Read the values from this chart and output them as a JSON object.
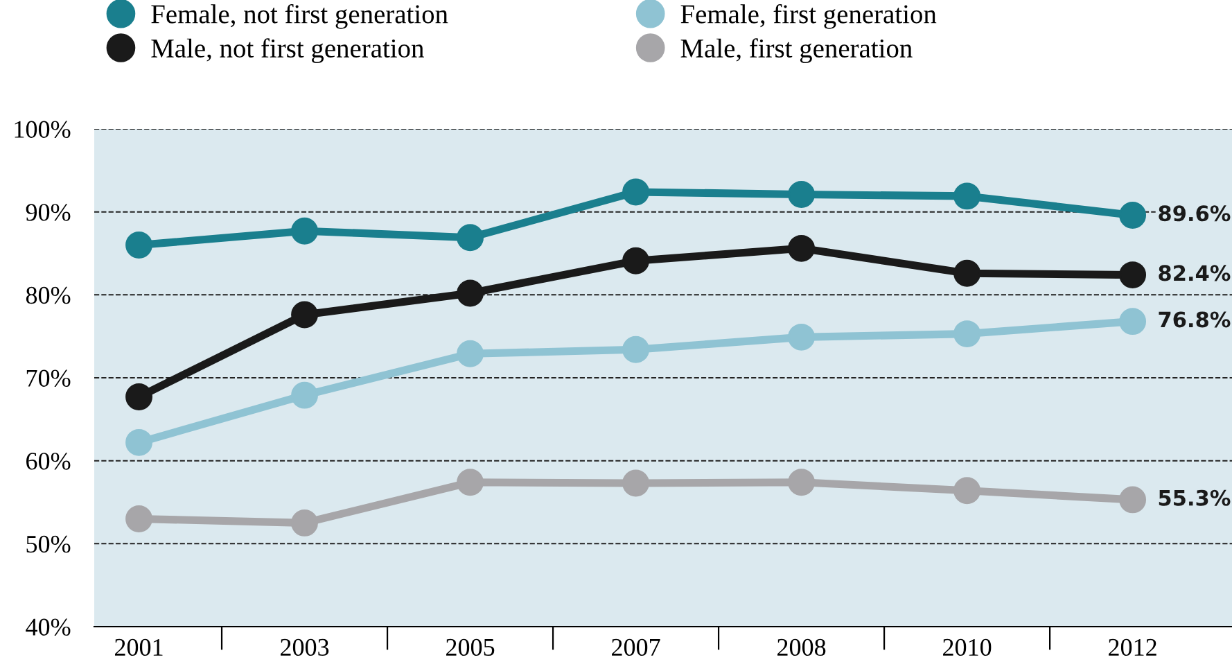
{
  "chart_data": {
    "type": "line",
    "categories": [
      "2001",
      "2003",
      "2005",
      "2007",
      "2008",
      "2010",
      "2012"
    ],
    "series": [
      {
        "name": "Female, not first generation",
        "color": "#1a7f8e",
        "values": [
          86.0,
          87.7,
          86.9,
          92.4,
          92.1,
          91.9,
          89.6
        ],
        "value_labels": [
          null,
          null,
          null,
          null,
          null,
          null,
          "89.6%"
        ]
      },
      {
        "name": "Male, not first generation",
        "color": "#1a1a1a",
        "values": [
          67.7,
          77.6,
          80.2,
          84.1,
          85.6,
          82.6,
          82.4
        ],
        "value_labels": [
          null,
          null,
          null,
          null,
          null,
          null,
          "82.4%"
        ]
      },
      {
        "name": "Female, first generation",
        "color": "#8fc3d3",
        "values": [
          62.2,
          67.9,
          72.9,
          73.4,
          74.9,
          75.3,
          76.8
        ],
        "value_labels": [
          null,
          null,
          null,
          null,
          null,
          null,
          "76.8%"
        ]
      },
      {
        "name": "Male, first generation",
        "color": "#a7a6a9",
        "values": [
          53.0,
          52.5,
          57.4,
          57.3,
          57.4,
          56.4,
          55.3
        ],
        "value_labels": [
          null,
          null,
          null,
          null,
          null,
          null,
          "55.3%"
        ]
      }
    ],
    "ylim": [
      40,
      100
    ],
    "yticks": [
      {
        "value": 40,
        "label": "40%"
      },
      {
        "value": 50,
        "label": "50%"
      },
      {
        "value": 60,
        "label": "60%"
      },
      {
        "value": 70,
        "label": "70%"
      },
      {
        "value": 80,
        "label": "80%"
      },
      {
        "value": 90,
        "label": "90%"
      },
      {
        "value": 100,
        "label": "100%"
      }
    ],
    "grid": "y",
    "legend": "top left",
    "marker": "circle",
    "line_style": "solid"
  }
}
